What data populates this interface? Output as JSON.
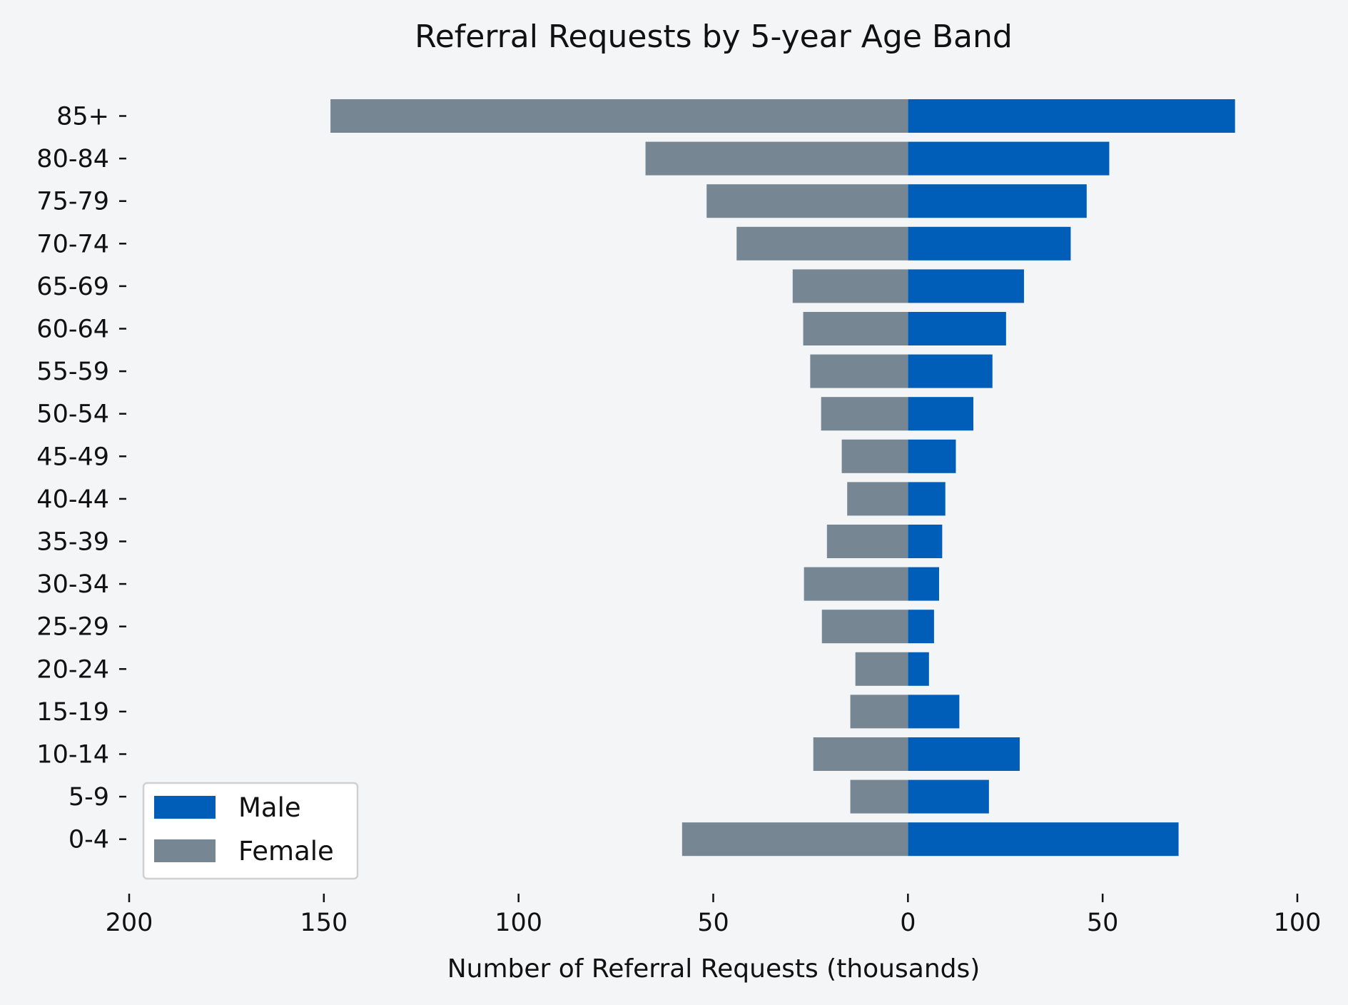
{
  "chart_data": {
    "type": "bar",
    "orientation": "horizontal-diverging",
    "title": "Referral Requests by 5-year Age Band",
    "xlabel": "Number of Referral Requests (thousands)",
    "ylabel": "",
    "categories": [
      "0-4",
      "5-9",
      "10-14",
      "15-19",
      "20-24",
      "25-29",
      "30-34",
      "35-39",
      "40-44",
      "45-49",
      "50-54",
      "55-59",
      "60-64",
      "65-69",
      "70-74",
      "75-79",
      "80-84",
      "85+"
    ],
    "series": [
      {
        "name": "Male",
        "color": "#005eb8",
        "side": "right",
        "values": [
          69.5,
          20.8,
          28.7,
          13.2,
          5.4,
          6.7,
          8.0,
          8.8,
          9.6,
          12.3,
          16.8,
          21.7,
          25.2,
          29.8,
          41.8,
          45.9,
          51.7,
          84.0
        ]
      },
      {
        "name": "Female",
        "color": "#768692",
        "side": "left",
        "values": [
          58.0,
          14.8,
          24.3,
          14.8,
          13.5,
          22.1,
          26.7,
          20.8,
          15.6,
          17.0,
          22.3,
          25.1,
          26.9,
          29.6,
          44.0,
          51.7,
          67.4,
          148.3
        ]
      }
    ],
    "xticks": [
      {
        "value": -200,
        "label": "200"
      },
      {
        "value": -150,
        "label": "150"
      },
      {
        "value": -100,
        "label": "100"
      },
      {
        "value": -50,
        "label": "50"
      },
      {
        "value": 0,
        "label": "0"
      },
      {
        "value": 50,
        "label": "50"
      },
      {
        "value": 100,
        "label": "100"
      }
    ],
    "xlim": [
      -200,
      100
    ],
    "grid": false,
    "legend": {
      "position": "bottom-left",
      "entries": [
        "Male",
        "Female"
      ]
    }
  }
}
